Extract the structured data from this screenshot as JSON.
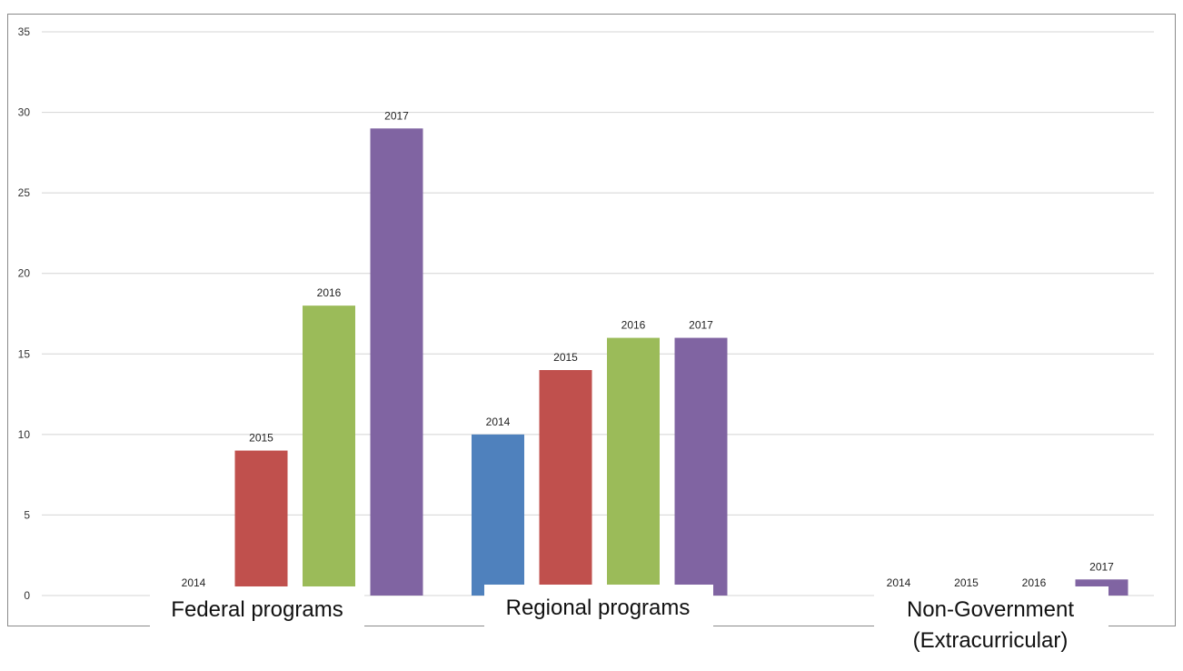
{
  "chart_data": {
    "type": "bar",
    "categories": [
      "Federal programs",
      "Regional programs",
      "Non-Government\n(Extracurricular)"
    ],
    "series": [
      {
        "name": "2014",
        "color": "#4f81bd",
        "values": [
          0,
          10,
          0
        ]
      },
      {
        "name": "2015",
        "color": "#c0504d",
        "values": [
          9,
          14,
          0
        ]
      },
      {
        "name": "2016",
        "color": "#9bbb59",
        "values": [
          18,
          16,
          0
        ]
      },
      {
        "name": "2017",
        "color": "#8064a2",
        "values": [
          29,
          16,
          1
        ]
      }
    ],
    "title": "",
    "xlabel": "",
    "ylabel": "",
    "ylim": [
      0,
      35
    ],
    "yticks": [
      0,
      5,
      10,
      15,
      20,
      25,
      30,
      35
    ],
    "grid": true,
    "legend": "none",
    "data_labels": "series name above each bar"
  }
}
